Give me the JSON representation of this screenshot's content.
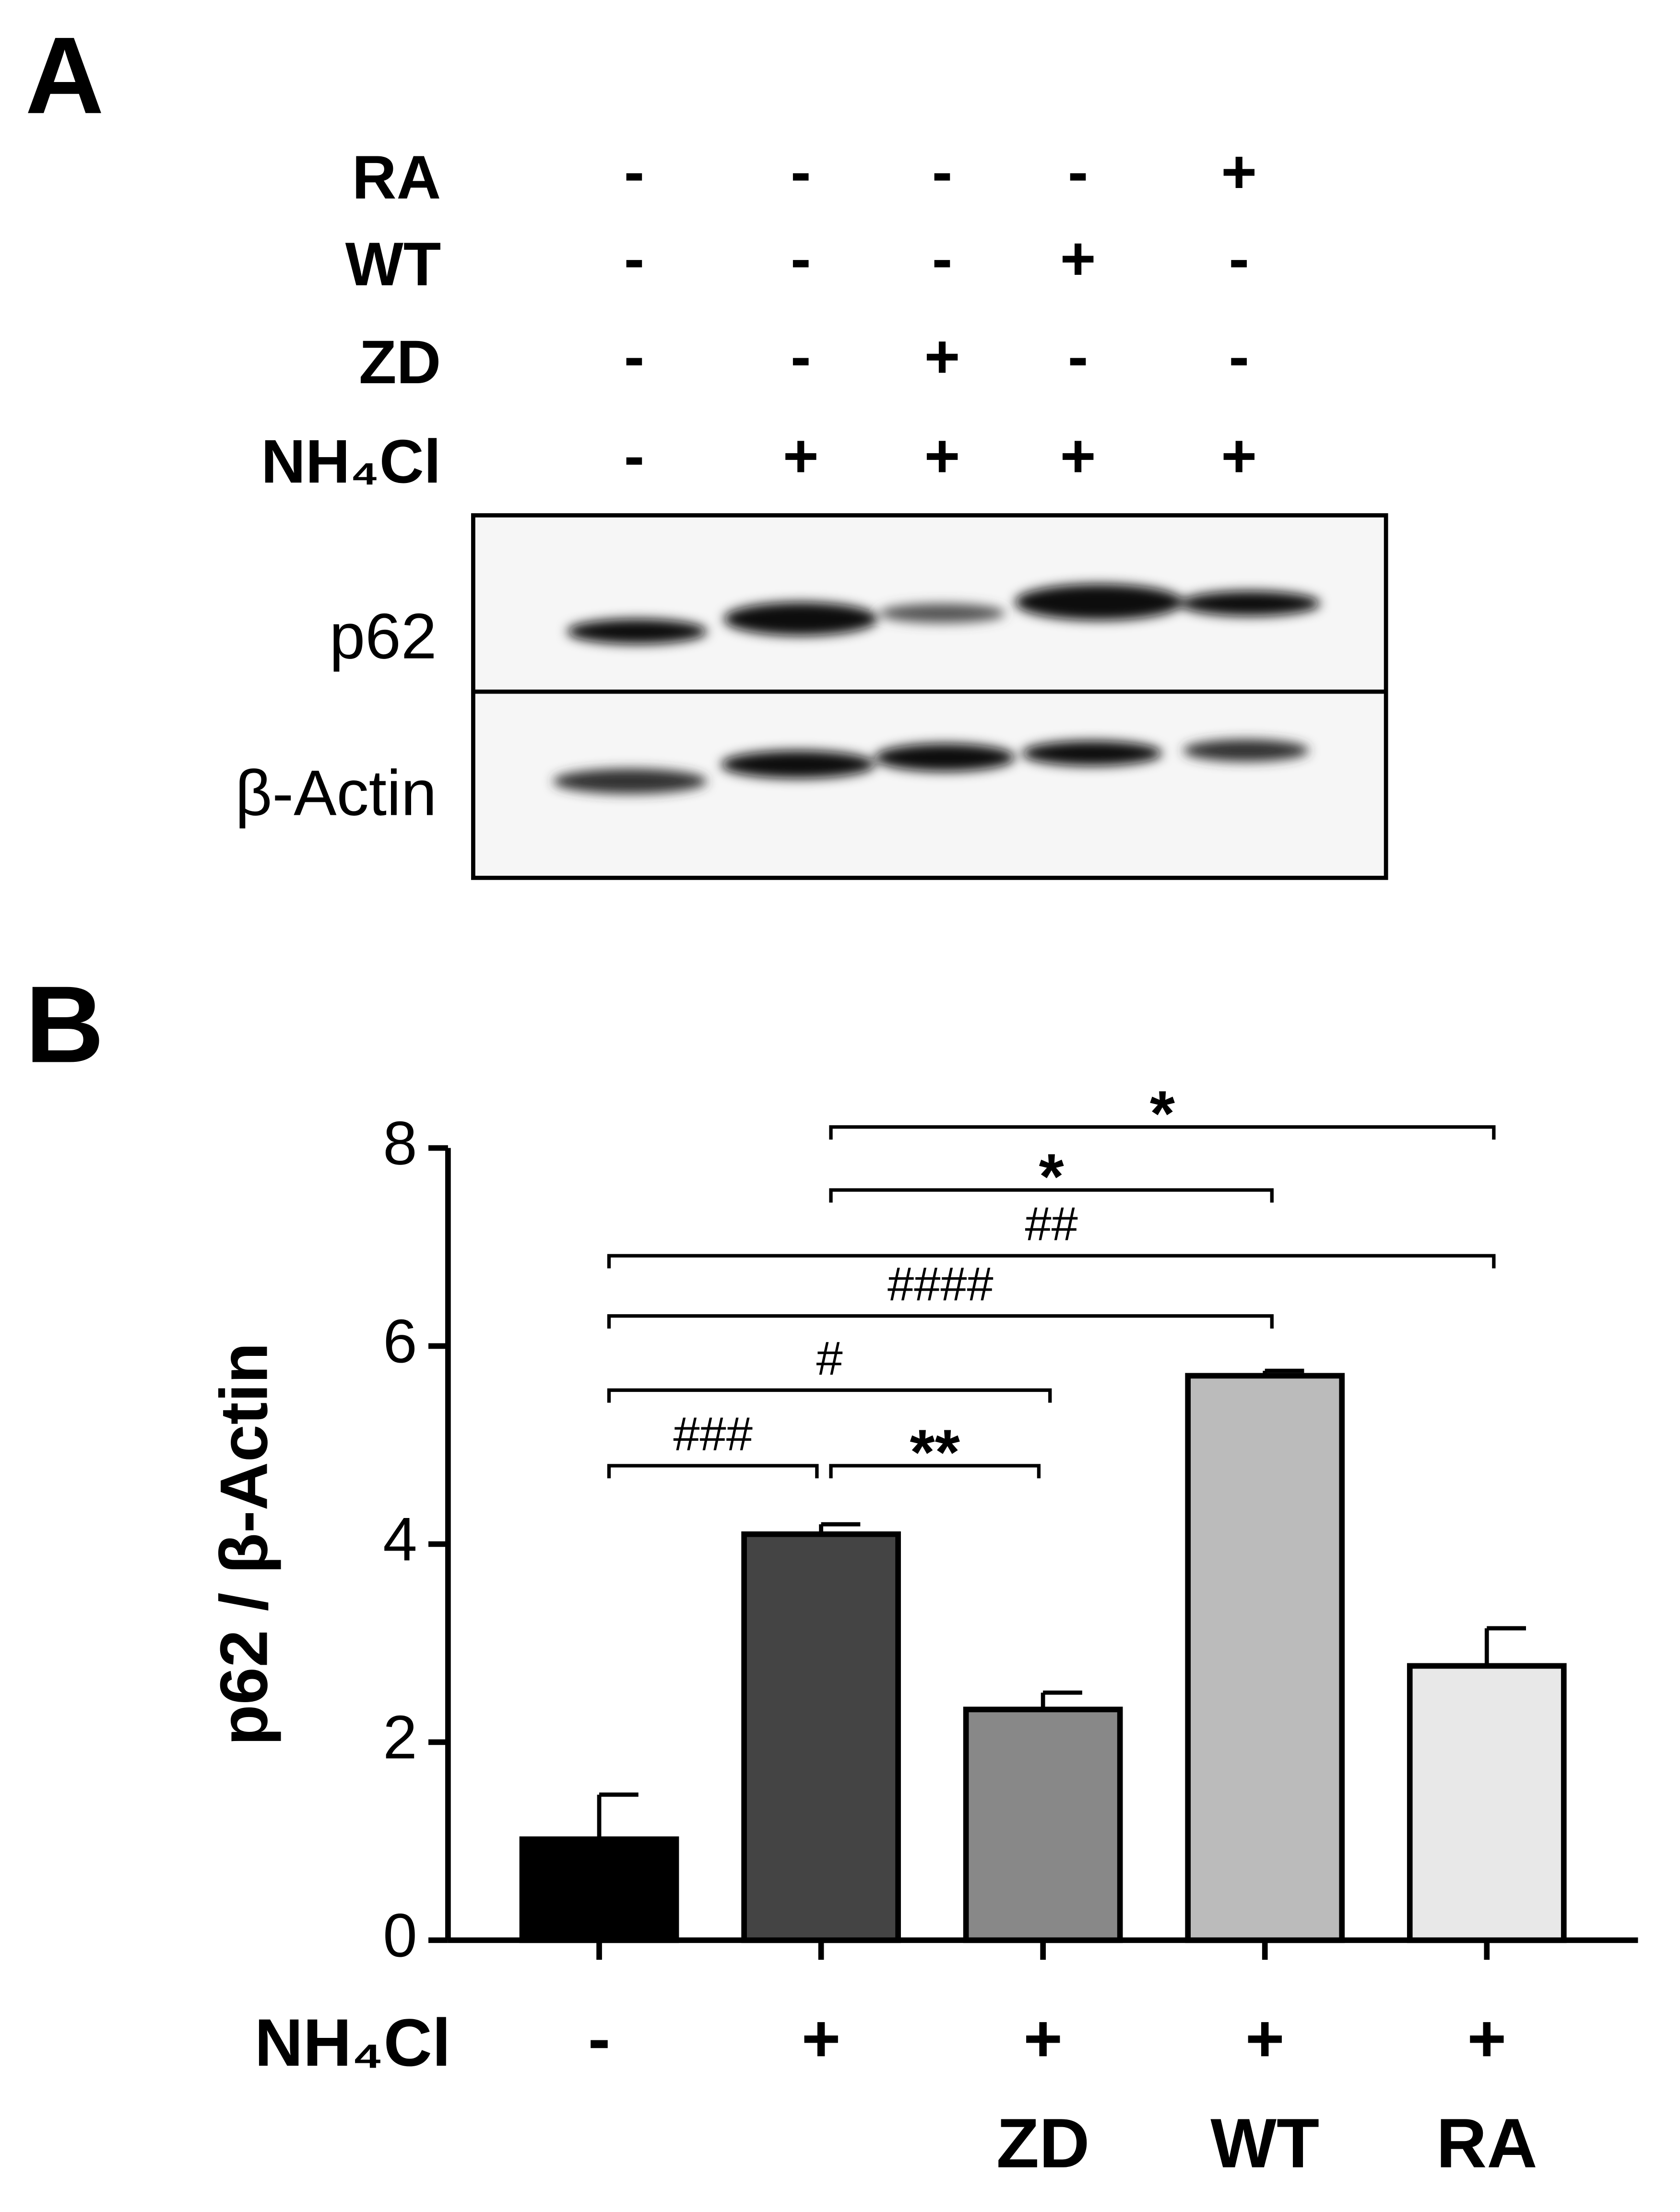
{
  "panel_a": {
    "letter": "A",
    "treatments": [
      {
        "label": "RA",
        "signs": [
          "-",
          "-",
          "-",
          "-",
          "+"
        ]
      },
      {
        "label": "WT",
        "signs": [
          "-",
          "-",
          "-",
          "+",
          "-"
        ]
      },
      {
        "label": "ZD",
        "signs": [
          "-",
          "-",
          "+",
          "-",
          "-"
        ]
      },
      {
        "label": "NH₄Cl",
        "signs": [
          "-",
          "+",
          "+",
          "+",
          "+"
        ]
      }
    ],
    "blot_labels": [
      "p62",
      "β-Actin"
    ]
  },
  "chart_data": {
    "type": "bar",
    "letter": "B",
    "y_label": "p62 / β-Actin",
    "row_label": "NH₄Cl",
    "row_signs": [
      "-",
      "+",
      "+",
      "+",
      "+"
    ],
    "categories": [
      null,
      null,
      "ZD",
      "WT",
      "RA"
    ],
    "values": [
      1.02,
      4.1,
      2.33,
      5.7,
      2.77
    ],
    "errors": [
      0.45,
      0.1,
      0.17,
      0.05,
      0.38
    ],
    "colors": [
      "#000000",
      "#444444",
      "#888888",
      "#bbbbbb",
      "#e8e8e8"
    ],
    "ylim": [
      0,
      8
    ],
    "yticks": [
      0,
      2,
      4,
      6,
      8
    ],
    "annotations": [
      {
        "text": "*",
        "groups": [
          1,
          4
        ]
      },
      {
        "text": "*",
        "groups": [
          1,
          3
        ]
      },
      {
        "text": "##",
        "groups": [
          0,
          4
        ]
      },
      {
        "text": "####",
        "groups": [
          0,
          3
        ]
      },
      {
        "text": "#",
        "groups": [
          0,
          2
        ]
      },
      {
        "text": "###",
        "groups": [
          0,
          1
        ]
      },
      {
        "text": "**",
        "groups": [
          1,
          2
        ]
      }
    ]
  }
}
